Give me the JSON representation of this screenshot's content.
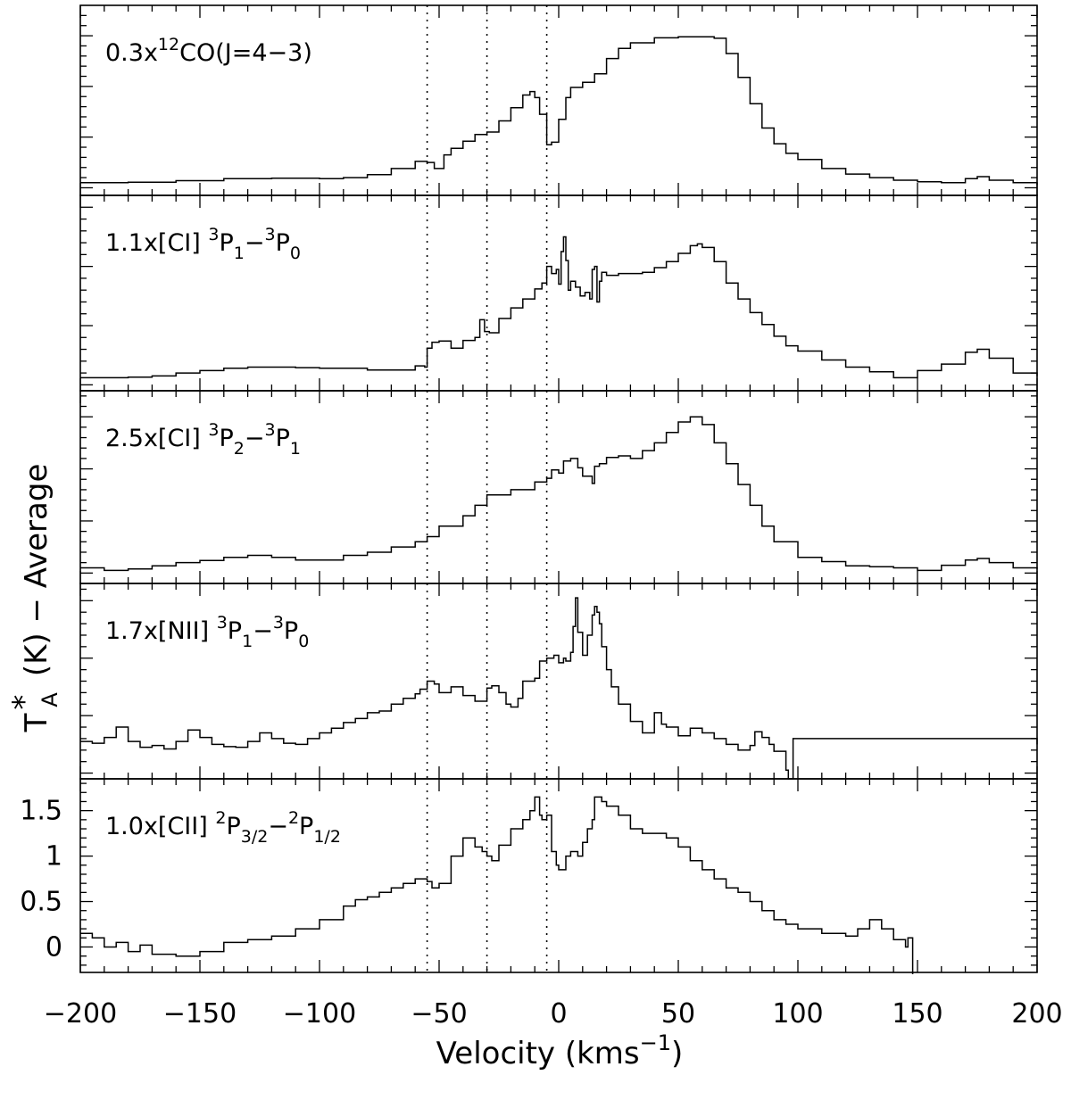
{
  "chart_data": {
    "type": "line",
    "style": "step",
    "xlabel": "Velocity (kms",
    "xlabel_sup": "−1",
    "xlabel_end": ")",
    "ylabel": "T",
    "ylabel_sup": "*",
    "ylabel_sub": "A",
    "ylabel_rest": "(K) − Average",
    "xlim": [
      -200,
      200
    ],
    "x_ticks": [
      -200,
      -150,
      -100,
      -50,
      0,
      50,
      100,
      150,
      200
    ],
    "x_tick_labels": [
      "−200",
      "−150",
      "−100",
      "−50",
      "0",
      "50",
      "100",
      "150",
      "200"
    ],
    "reference_velocities": [
      -55,
      -30,
      -5
    ],
    "panels": [
      {
        "label": [
          {
            "t": "0.3x"
          },
          {
            "t": "12",
            "s": "sup"
          },
          {
            "t": "CO(J=4−3)"
          }
        ],
        "x": [
          -200,
          -180,
          -160,
          -140,
          -120,
          -100,
          -90,
          -80,
          -70,
          -60,
          -55,
          -52,
          -48,
          -45,
          -40,
          -35,
          -30,
          -25,
          -20,
          -15,
          -12,
          -10,
          -8,
          -5,
          -3,
          0,
          3,
          5,
          10,
          15,
          20,
          25,
          30,
          40,
          50,
          60,
          65,
          70,
          75,
          80,
          85,
          90,
          95,
          100,
          110,
          120,
          130,
          140,
          150,
          160,
          170,
          175,
          180,
          190,
          200
        ],
        "y": [
          0.1,
          0.11,
          0.14,
          0.18,
          0.19,
          0.18,
          0.2,
          0.26,
          0.38,
          0.52,
          0.5,
          0.38,
          0.65,
          0.78,
          0.92,
          1.05,
          1.1,
          1.32,
          1.58,
          1.83,
          1.9,
          1.78,
          1.45,
          0.85,
          0.9,
          1.35,
          1.78,
          1.98,
          2.08,
          2.25,
          2.55,
          2.75,
          2.86,
          2.96,
          2.98,
          2.98,
          2.95,
          2.65,
          2.18,
          1.66,
          1.18,
          0.87,
          0.68,
          0.56,
          0.38,
          0.27,
          0.2,
          0.15,
          0.12,
          0.1,
          0.18,
          0.22,
          0.15,
          0.1,
          0.06
        ],
        "ylim": [
          -0.15,
          3.6
        ],
        "y_ticks": [
          0,
          1,
          2,
          3
        ]
      },
      {
        "label": [
          {
            "t": "1.1x[CI] "
          },
          {
            "t": "3",
            "s": "sup"
          },
          {
            "t": "P"
          },
          {
            "t": "1",
            "s": "sub"
          },
          {
            "t": "−"
          },
          {
            "t": "3",
            "s": "sup"
          },
          {
            "t": "P"
          },
          {
            "t": "0",
            "s": "sub"
          }
        ],
        "x": [
          -200,
          -190,
          -180,
          -170,
          -160,
          -150,
          -140,
          -130,
          -120,
          -110,
          -100,
          -90,
          -80,
          -70,
          -60,
          -56,
          -55,
          -53,
          -50,
          -45,
          -40,
          -35,
          -33,
          -31,
          -29,
          -25,
          -20,
          -15,
          -10,
          -7,
          -5,
          -3,
          -1,
          0,
          1,
          2,
          3,
          4,
          5,
          7,
          9,
          11,
          13,
          14,
          15,
          16,
          17,
          18,
          20,
          25,
          30,
          35,
          40,
          45,
          50,
          55,
          58,
          60,
          65,
          70,
          75,
          80,
          85,
          90,
          95,
          100,
          110,
          120,
          130,
          140,
          145,
          150,
          160,
          170,
          175,
          180,
          190,
          200
        ],
        "y": [
          0.12,
          0.12,
          0.13,
          0.15,
          0.2,
          0.24,
          0.28,
          0.3,
          0.3,
          0.29,
          0.28,
          0.28,
          0.25,
          0.25,
          0.32,
          0.3,
          0.62,
          0.72,
          0.74,
          0.62,
          0.75,
          0.8,
          1.1,
          0.9,
          0.88,
          1.12,
          1.3,
          1.45,
          1.62,
          1.72,
          2.0,
          1.88,
          1.95,
          1.7,
          2.25,
          2.5,
          2.1,
          1.6,
          1.75,
          1.65,
          1.5,
          1.56,
          1.45,
          1.95,
          2.0,
          1.4,
          1.75,
          1.9,
          1.85,
          1.88,
          1.88,
          1.9,
          1.98,
          2.08,
          2.22,
          2.35,
          2.38,
          2.32,
          2.08,
          1.72,
          1.45,
          1.22,
          1.02,
          0.82,
          0.66,
          0.57,
          0.42,
          0.3,
          0.22,
          0.12,
          0.12,
          0.24,
          0.35,
          0.55,
          0.6,
          0.45,
          0.2,
          0.15
        ],
        "ylim": [
          -0.1,
          3.2
        ],
        "y_ticks": [
          0,
          1,
          2,
          3
        ]
      },
      {
        "label": [
          {
            "t": "2.5x[CI] "
          },
          {
            "t": "3",
            "s": "sup"
          },
          {
            "t": "P"
          },
          {
            "t": "2",
            "s": "sub"
          },
          {
            "t": "−"
          },
          {
            "t": "3",
            "s": "sup"
          },
          {
            "t": "P"
          },
          {
            "t": "1",
            "s": "sub"
          }
        ],
        "x": [
          -200,
          -190,
          -180,
          -170,
          -160,
          -150,
          -140,
          -130,
          -120,
          -110,
          -100,
          -90,
          -80,
          -70,
          -60,
          -55,
          -50,
          -40,
          -35,
          -30,
          -20,
          -10,
          -5,
          -3,
          0,
          2,
          5,
          8,
          10,
          13,
          14,
          15,
          17,
          20,
          25,
          30,
          35,
          40,
          45,
          50,
          55,
          60,
          65,
          70,
          75,
          80,
          85,
          90,
          100,
          110,
          120,
          130,
          140,
          150,
          160,
          170,
          175,
          180,
          190,
          200
        ],
        "y": [
          0.1,
          0.05,
          0.08,
          0.14,
          0.2,
          0.24,
          0.3,
          0.34,
          0.3,
          0.25,
          0.25,
          0.34,
          0.4,
          0.5,
          0.6,
          0.7,
          0.9,
          1.1,
          1.3,
          1.5,
          1.6,
          1.75,
          1.82,
          1.98,
          1.92,
          2.15,
          2.2,
          2.02,
          1.86,
          1.86,
          1.72,
          2.05,
          2.1,
          2.22,
          2.25,
          2.2,
          2.35,
          2.5,
          2.7,
          2.9,
          3.0,
          2.85,
          2.5,
          2.1,
          1.7,
          1.3,
          0.9,
          0.6,
          0.3,
          0.22,
          0.14,
          0.12,
          0.1,
          0.05,
          0.15,
          0.25,
          0.28,
          0.2,
          0.1,
          0.08
        ],
        "ylim": [
          -0.2,
          3.5
        ],
        "y_ticks": [
          0,
          1,
          2,
          3
        ]
      },
      {
        "label": [
          {
            "t": "1.7x[NII] "
          },
          {
            "t": "3",
            "s": "sup"
          },
          {
            "t": "P"
          },
          {
            "t": "1",
            "s": "sub"
          },
          {
            "t": "−"
          },
          {
            "t": "3",
            "s": "sup"
          },
          {
            "t": "P"
          },
          {
            "t": "0",
            "s": "sub"
          }
        ],
        "x": [
          -200,
          -195,
          -190,
          -185,
          -180,
          -175,
          -170,
          -165,
          -160,
          -155,
          -150,
          -145,
          -140,
          -135,
          -130,
          -125,
          -120,
          -115,
          -110,
          -105,
          -100,
          -95,
          -90,
          -85,
          -80,
          -75,
          -70,
          -65,
          -60,
          -58,
          -55,
          -52,
          -50,
          -45,
          -40,
          -35,
          -30,
          -28,
          -25,
          -22,
          -20,
          -17,
          -15,
          -10,
          -8,
          -5,
          -2,
          0,
          2,
          3,
          5,
          6,
          7,
          8,
          10,
          12,
          14,
          15,
          16,
          17,
          18,
          20,
          22,
          25,
          30,
          35,
          40,
          43,
          45,
          50,
          55,
          60,
          65,
          70,
          75,
          80,
          82,
          85,
          88,
          90,
          95,
          96,
          97,
          98,
          100,
          200
        ],
        "y": [
          0.55,
          0.52,
          0.62,
          0.8,
          0.55,
          0.45,
          0.48,
          0.42,
          0.55,
          0.75,
          0.62,
          0.5,
          0.46,
          0.45,
          0.55,
          0.7,
          0.6,
          0.52,
          0.5,
          0.6,
          0.7,
          0.78,
          0.88,
          0.95,
          1.05,
          1.08,
          1.2,
          1.3,
          1.38,
          1.46,
          1.6,
          1.55,
          1.4,
          1.5,
          1.35,
          1.25,
          1.48,
          1.52,
          1.4,
          1.2,
          1.15,
          1.3,
          1.6,
          1.65,
          1.95,
          2.0,
          2.05,
          1.92,
          2.0,
          1.95,
          2.1,
          2.55,
          3.05,
          2.45,
          2.05,
          2.4,
          2.75,
          2.9,
          2.8,
          2.6,
          2.2,
          1.8,
          1.5,
          1.2,
          0.9,
          0.7,
          1.05,
          0.85,
          0.8,
          0.65,
          0.78,
          0.7,
          0.6,
          0.5,
          0.4,
          0.48,
          0.72,
          0.62,
          0.5,
          0.38,
          0.05,
          -0.1,
          -0.1,
          0.6,
          0.6,
          0.5
        ],
        "ylim": [
          -0.1,
          3.3
        ],
        "y_ticks": [
          0,
          1,
          2,
          3
        ]
      },
      {
        "label": [
          {
            "t": "1.0x[CII] "
          },
          {
            "t": "2",
            "s": "sup"
          },
          {
            "t": "P"
          },
          {
            "t": "3/2",
            "s": "sub"
          },
          {
            "t": "−"
          },
          {
            "t": "2",
            "s": "sup"
          },
          {
            "t": "P"
          },
          {
            "t": "1/2",
            "s": "sub"
          }
        ],
        "x": [
          -200,
          -195,
          -190,
          -185,
          -180,
          -175,
          -170,
          -160,
          -150,
          -140,
          -130,
          -120,
          -110,
          -100,
          -90,
          -85,
          -80,
          -75,
          -70,
          -65,
          -60,
          -55,
          -53,
          -50,
          -45,
          -40,
          -35,
          -32,
          -30,
          -28,
          -25,
          -20,
          -15,
          -12,
          -10,
          -8,
          -7,
          -5,
          -3,
          -1,
          0,
          3,
          5,
          8,
          10,
          12,
          14,
          15,
          18,
          20,
          25,
          30,
          35,
          40,
          45,
          50,
          55,
          60,
          65,
          70,
          75,
          80,
          85,
          90,
          95,
          100,
          110,
          120,
          125,
          130,
          135,
          140,
          145,
          146,
          147,
          148
        ],
        "y": [
          0.15,
          0.1,
          0.0,
          0.05,
          -0.05,
          0.02,
          -0.08,
          -0.1,
          -0.05,
          0.05,
          0.08,
          0.12,
          0.2,
          0.3,
          0.45,
          0.52,
          0.55,
          0.6,
          0.65,
          0.7,
          0.75,
          0.72,
          0.65,
          0.7,
          1.0,
          1.2,
          1.1,
          1.05,
          1.0,
          0.95,
          1.12,
          1.3,
          1.4,
          1.5,
          1.65,
          1.45,
          1.4,
          1.45,
          1.05,
          0.9,
          0.85,
          1.0,
          1.05,
          1.0,
          1.15,
          1.3,
          1.4,
          1.65,
          1.6,
          1.55,
          1.45,
          1.3,
          1.25,
          1.25,
          1.2,
          1.1,
          0.95,
          0.85,
          0.75,
          0.65,
          0.6,
          0.5,
          0.4,
          0.3,
          0.25,
          0.2,
          0.15,
          0.12,
          0.2,
          0.3,
          0.2,
          0.08,
          0.0,
          0.1,
          0.1,
          -0.3
        ],
        "ylim": [
          -0.28,
          1.85
        ],
        "y_ticks": [
          0,
          0.5,
          1,
          1.5
        ],
        "y_tick_labels": [
          "0",
          "0.5",
          "1",
          "1.5"
        ]
      }
    ]
  }
}
